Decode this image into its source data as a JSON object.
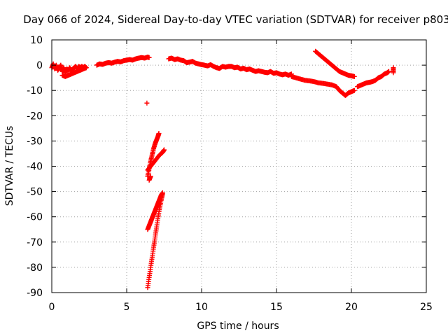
{
  "chart_data": {
    "type": "scatter",
    "title": "Day 066 of 2024, Sidereal Day-to-day VTEC variation (SDTVAR) for receiver p803",
    "xlabel": "GPS time / hours",
    "ylabel": "SDTVAR / TECUs",
    "xlim": [
      0,
      25
    ],
    "ylim": [
      -90,
      10
    ],
    "xticks": [
      0,
      5,
      10,
      15,
      20,
      25
    ],
    "yticks": [
      10,
      0,
      -10,
      -20,
      -30,
      -40,
      -50,
      -60,
      -70,
      -80,
      -90
    ],
    "grid": true,
    "marker": "plus",
    "color": "#ff0000",
    "series": [
      {
        "name": "arc-1",
        "points": [
          [
            0.0,
            -1.0
          ],
          [
            0.1,
            0.5
          ],
          [
            0.2,
            -1.5
          ],
          [
            0.3,
            0.0
          ],
          [
            0.4,
            -2.0
          ],
          [
            0.5,
            -1.0
          ],
          [
            0.6,
            0.0
          ],
          [
            0.7,
            -2.5
          ],
          [
            0.8,
            -1.0
          ],
          [
            0.9,
            -3.0
          ],
          [
            1.0,
            -1.5
          ],
          [
            1.1,
            -2.0
          ],
          [
            1.2,
            -1.0
          ],
          [
            1.3,
            -2.5
          ],
          [
            1.4,
            -1.5
          ],
          [
            1.5,
            -1.0
          ],
          [
            1.6,
            -0.5
          ],
          [
            1.7,
            -1.5
          ],
          [
            1.8,
            -0.5
          ],
          [
            1.9,
            -1.0
          ],
          [
            2.0,
            -0.5
          ],
          [
            2.1,
            -1.0
          ],
          [
            2.2,
            -0.5
          ],
          [
            2.3,
            -1.0
          ]
        ]
      },
      {
        "name": "arc-2",
        "points": [
          [
            0.7,
            -4.0
          ],
          [
            0.9,
            -4.5
          ],
          [
            1.1,
            -4.0
          ],
          [
            1.3,
            -3.5
          ],
          [
            1.5,
            -3.0
          ],
          [
            1.7,
            -2.5
          ],
          [
            1.9,
            -2.0
          ],
          [
            2.1,
            -1.5
          ],
          [
            2.3,
            -1.0
          ]
        ]
      },
      {
        "name": "arc-3",
        "points": [
          [
            3.0,
            0.0
          ],
          [
            3.2,
            0.5
          ],
          [
            3.4,
            0.3
          ],
          [
            3.6,
            0.8
          ],
          [
            3.8,
            1.0
          ],
          [
            4.0,
            0.8
          ],
          [
            4.2,
            1.2
          ],
          [
            4.4,
            1.5
          ],
          [
            4.6,
            1.3
          ],
          [
            4.8,
            1.8
          ],
          [
            5.0,
            2.0
          ],
          [
            5.2,
            2.2
          ],
          [
            5.4,
            2.0
          ],
          [
            5.6,
            2.5
          ],
          [
            5.8,
            2.8
          ],
          [
            6.0,
            3.0
          ],
          [
            6.2,
            2.8
          ],
          [
            6.4,
            3.2
          ],
          [
            6.5,
            3.0
          ]
        ]
      },
      {
        "name": "arc-4",
        "points": [
          [
            7.8,
            2.5
          ],
          [
            8.0,
            2.8
          ],
          [
            8.2,
            2.2
          ],
          [
            8.4,
            2.5
          ],
          [
            8.6,
            2.0
          ],
          [
            8.8,
            1.8
          ],
          [
            9.0,
            1.0
          ],
          [
            9.2,
            1.2
          ],
          [
            9.4,
            1.5
          ],
          [
            9.6,
            0.8
          ],
          [
            9.8,
            0.5
          ],
          [
            10.0,
            0.2
          ],
          [
            10.2,
            0.0
          ],
          [
            10.4,
            -0.3
          ],
          [
            10.6,
            0.2
          ],
          [
            10.8,
            -0.5
          ],
          [
            11.0,
            -1.0
          ],
          [
            11.2,
            -1.3
          ],
          [
            11.4,
            -0.5
          ],
          [
            11.6,
            -0.8
          ],
          [
            11.8,
            -0.5
          ],
          [
            12.0,
            -0.5
          ],
          [
            12.2,
            -1.0
          ],
          [
            12.4,
            -0.8
          ],
          [
            12.6,
            -1.5
          ],
          [
            12.8,
            -1.2
          ],
          [
            13.0,
            -1.8
          ],
          [
            13.2,
            -1.5
          ],
          [
            13.4,
            -2.0
          ],
          [
            13.6,
            -2.5
          ],
          [
            13.8,
            -2.2
          ],
          [
            14.0,
            -2.5
          ],
          [
            14.2,
            -2.8
          ],
          [
            14.4,
            -3.0
          ],
          [
            14.6,
            -2.5
          ],
          [
            14.8,
            -3.2
          ],
          [
            15.0,
            -3.0
          ],
          [
            15.2,
            -3.5
          ],
          [
            15.4,
            -3.8
          ],
          [
            15.6,
            -3.5
          ],
          [
            15.8,
            -4.0
          ],
          [
            16.0,
            -3.5
          ]
        ]
      },
      {
        "name": "arc-5",
        "points": [
          [
            16.0,
            -4.5
          ],
          [
            16.3,
            -5.0
          ],
          [
            16.6,
            -5.5
          ],
          [
            16.9,
            -6.0
          ],
          [
            17.2,
            -6.2
          ],
          [
            17.5,
            -6.5
          ],
          [
            17.8,
            -7.0
          ],
          [
            18.1,
            -7.2
          ],
          [
            18.4,
            -7.5
          ],
          [
            18.7,
            -7.8
          ],
          [
            19.0,
            -8.5
          ],
          [
            19.2,
            -10.0
          ],
          [
            19.4,
            -11.0
          ],
          [
            19.6,
            -12.0
          ],
          [
            19.8,
            -11.0
          ],
          [
            20.0,
            -10.5
          ],
          [
            20.2,
            -10.0
          ]
        ]
      },
      {
        "name": "arc-6",
        "points": [
          [
            17.6,
            5.5
          ],
          [
            17.8,
            4.5
          ],
          [
            18.0,
            3.5
          ],
          [
            18.2,
            2.5
          ],
          [
            18.4,
            1.5
          ],
          [
            18.6,
            0.5
          ],
          [
            18.8,
            -0.5
          ],
          [
            19.0,
            -1.5
          ],
          [
            19.2,
            -2.5
          ],
          [
            19.4,
            -3.0
          ],
          [
            19.6,
            -3.5
          ],
          [
            19.8,
            -4.0
          ],
          [
            20.0,
            -4.2
          ],
          [
            20.2,
            -4.5
          ]
        ]
      },
      {
        "name": "arc-7",
        "points": [
          [
            20.4,
            -8.5
          ],
          [
            20.6,
            -8.0
          ],
          [
            20.8,
            -7.5
          ],
          [
            21.0,
            -7.0
          ],
          [
            21.2,
            -6.8
          ],
          [
            21.4,
            -6.5
          ],
          [
            21.6,
            -6.0
          ],
          [
            21.8,
            -5.0
          ],
          [
            22.0,
            -4.5
          ],
          [
            22.2,
            -3.5
          ],
          [
            22.4,
            -3.0
          ],
          [
            22.5,
            -2.5
          ]
        ]
      },
      {
        "name": "arc-8",
        "points": [
          [
            22.8,
            -1.0
          ],
          [
            22.8,
            -3.0
          ]
        ]
      },
      {
        "name": "arc-9",
        "points": [
          [
            6.35,
            -15.0
          ]
        ]
      },
      {
        "name": "arc-10",
        "points": [
          [
            6.4,
            -44.0
          ],
          [
            6.5,
            -41.0
          ],
          [
            6.6,
            -38.0
          ],
          [
            6.7,
            -35.5
          ],
          [
            6.8,
            -33.0
          ],
          [
            6.9,
            -31.0
          ],
          [
            7.0,
            -29.5
          ],
          [
            7.1,
            -28.0
          ],
          [
            7.15,
            -27.0
          ]
        ]
      },
      {
        "name": "arc-11",
        "points": [
          [
            6.4,
            -41.5
          ],
          [
            6.6,
            -40.0
          ],
          [
            6.8,
            -38.5
          ],
          [
            7.0,
            -37.0
          ],
          [
            7.2,
            -35.5
          ],
          [
            7.4,
            -34.5
          ],
          [
            7.5,
            -33.5
          ]
        ]
      },
      {
        "name": "arc-12",
        "points": [
          [
            6.5,
            -45.5
          ],
          [
            6.6,
            -44.0
          ]
        ]
      },
      {
        "name": "arc-13",
        "points": [
          [
            6.4,
            -65.0
          ],
          [
            6.5,
            -63.5
          ],
          [
            6.6,
            -62.0
          ],
          [
            6.7,
            -60.5
          ],
          [
            6.8,
            -59.0
          ],
          [
            6.9,
            -57.5
          ],
          [
            7.0,
            -56.0
          ],
          [
            7.1,
            -54.5
          ],
          [
            7.2,
            -53.0
          ],
          [
            7.3,
            -51.5
          ],
          [
            7.4,
            -50.5
          ]
        ]
      },
      {
        "name": "arc-14",
        "points": [
          [
            6.4,
            -88.0
          ],
          [
            6.5,
            -84.0
          ],
          [
            6.6,
            -80.0
          ],
          [
            6.7,
            -76.0
          ],
          [
            6.8,
            -72.0
          ],
          [
            6.9,
            -68.0
          ],
          [
            7.0,
            -64.0
          ],
          [
            7.1,
            -60.0
          ],
          [
            7.2,
            -56.5
          ],
          [
            7.3,
            -53.5
          ],
          [
            7.4,
            -51.0
          ]
        ]
      }
    ]
  }
}
